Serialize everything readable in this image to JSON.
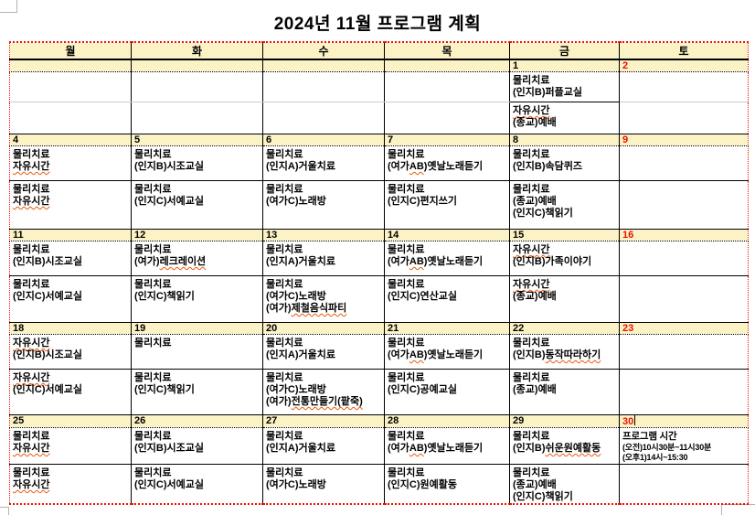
{
  "title": "2024년 11월 프로그램 계획",
  "colors": {
    "band_yellow": "#fbf2c6",
    "border_red": "#ee1100",
    "saturday_red": "#ee1100",
    "squiggle_orange": "#e8590c",
    "border_black": "#000000",
    "page_bg": "#ffffff"
  },
  "calendar": {
    "day_headers": [
      "월",
      "화",
      "수",
      "목",
      "금",
      "토"
    ],
    "saturday_column_index": 5,
    "spellcheck_underlined_tokens": [
      "자유시간",
      "레크레이션",
      "AB",
      "제철음식파티",
      "전통만들기(팥죽)",
      "동작따라하기",
      "쉬운원예활동"
    ],
    "text_cursor": {
      "after_date": "30"
    },
    "weeks": [
      {
        "dates": [
          "",
          "",
          "",
          "",
          "1",
          "2"
        ],
        "row1": [
          [],
          [],
          [],
          [],
          [
            "물리치료",
            "(인지B)퍼플교실"
          ],
          []
        ],
        "row2": [
          [],
          [],
          [],
          [],
          [
            "자유시간",
            "(종교)예배"
          ],
          []
        ]
      },
      {
        "dates": [
          "4",
          "5",
          "6",
          "7",
          "8",
          "9"
        ],
        "row1": [
          [
            "물리치료",
            "자유시간"
          ],
          [
            "물리치료",
            "(인지B)시조교실"
          ],
          [
            "물리치료",
            "(인지A)거울치료"
          ],
          [
            "물리치료",
            "(여가AB)옛날노래듣기"
          ],
          [
            "물리치료",
            "(인지B)속담퀴즈"
          ],
          []
        ],
        "row2": [
          [
            "물리치료",
            "자유시간"
          ],
          [
            "물리치료",
            "(인지C)서예교실"
          ],
          [
            "물리치료",
            "(여가C)노래방"
          ],
          [
            "물리치료",
            "(인지C)편지쓰기"
          ],
          [
            "물리치료",
            "(종교)예배",
            "(인지C)책읽기"
          ],
          []
        ]
      },
      {
        "dates": [
          "11",
          "12",
          "13",
          "14",
          "15",
          "16"
        ],
        "row1": [
          [
            "물리치료",
            "(인지B)시조교실"
          ],
          [
            "물리치료",
            "(여가)레크레이션"
          ],
          [
            "물리치료",
            "(인지A)거울치료"
          ],
          [
            "물리치료",
            "(여가AB)옛날노래듣기"
          ],
          [
            "자유시간",
            "(인지B)가족이야기"
          ],
          []
        ],
        "row2": [
          [
            "물리치료",
            "(인지C)서예교실"
          ],
          [
            "물리치료",
            "(인지C)책읽기"
          ],
          [
            "물리치료",
            "(여가C)노래방",
            "(여가)제철음식파티"
          ],
          [
            "물리치료",
            "(인지C)연산교실"
          ],
          [
            "자유시간",
            "(종교)예배"
          ],
          []
        ]
      },
      {
        "dates": [
          "18",
          "19",
          "20",
          "21",
          "22",
          "23"
        ],
        "row1": [
          [
            "자유시간",
            "(인지B)시조교실"
          ],
          [
            "물리치료"
          ],
          [
            "물리치료",
            "(인지A)거울치료"
          ],
          [
            "물리치료",
            "(여가AB)옛날노래듣기"
          ],
          [
            "물리치료",
            "(인지B)동작따라하기"
          ],
          []
        ],
        "row2": [
          [
            "자유시간",
            "(인지C)서예교실"
          ],
          [
            "물리치료",
            "(인지C)책읽기"
          ],
          [
            "물리치료",
            "(여가C)노래방",
            "(여가)전통만들기(팥죽)"
          ],
          [
            "물리치료",
            "(인지C)공예교실"
          ],
          [
            "물리치료",
            "(종교)예배"
          ],
          []
        ]
      },
      {
        "dates": [
          "25",
          "26",
          "27",
          "28",
          "29",
          "30"
        ],
        "row1": [
          [
            "물리치료",
            "자유시간"
          ],
          [
            "물리치료",
            "(인지B)시조교실"
          ],
          [
            "물리치료",
            "(인지A)거울치료"
          ],
          [
            "물리치료",
            "(여가AB)옛날노래듣기"
          ],
          [
            "물리치료",
            "(인지B)쉬운원예활동"
          ],
          {
            "small": true,
            "lines": [
              "프로그램 시간",
              "(오전)10시30분~11시30분",
              "(오후1)14시~15:30"
            ]
          }
        ],
        "row2": [
          [
            "물리치료",
            "자유시간"
          ],
          [
            "물리치료",
            "(인지C)서예교실"
          ],
          [
            "물리치료",
            "(여가C)노래방"
          ],
          [
            "물리치료",
            "(인지C)원예활동"
          ],
          [
            "물리치료",
            "(종교)예배",
            "(인지C)책읽기"
          ],
          []
        ]
      }
    ]
  }
}
